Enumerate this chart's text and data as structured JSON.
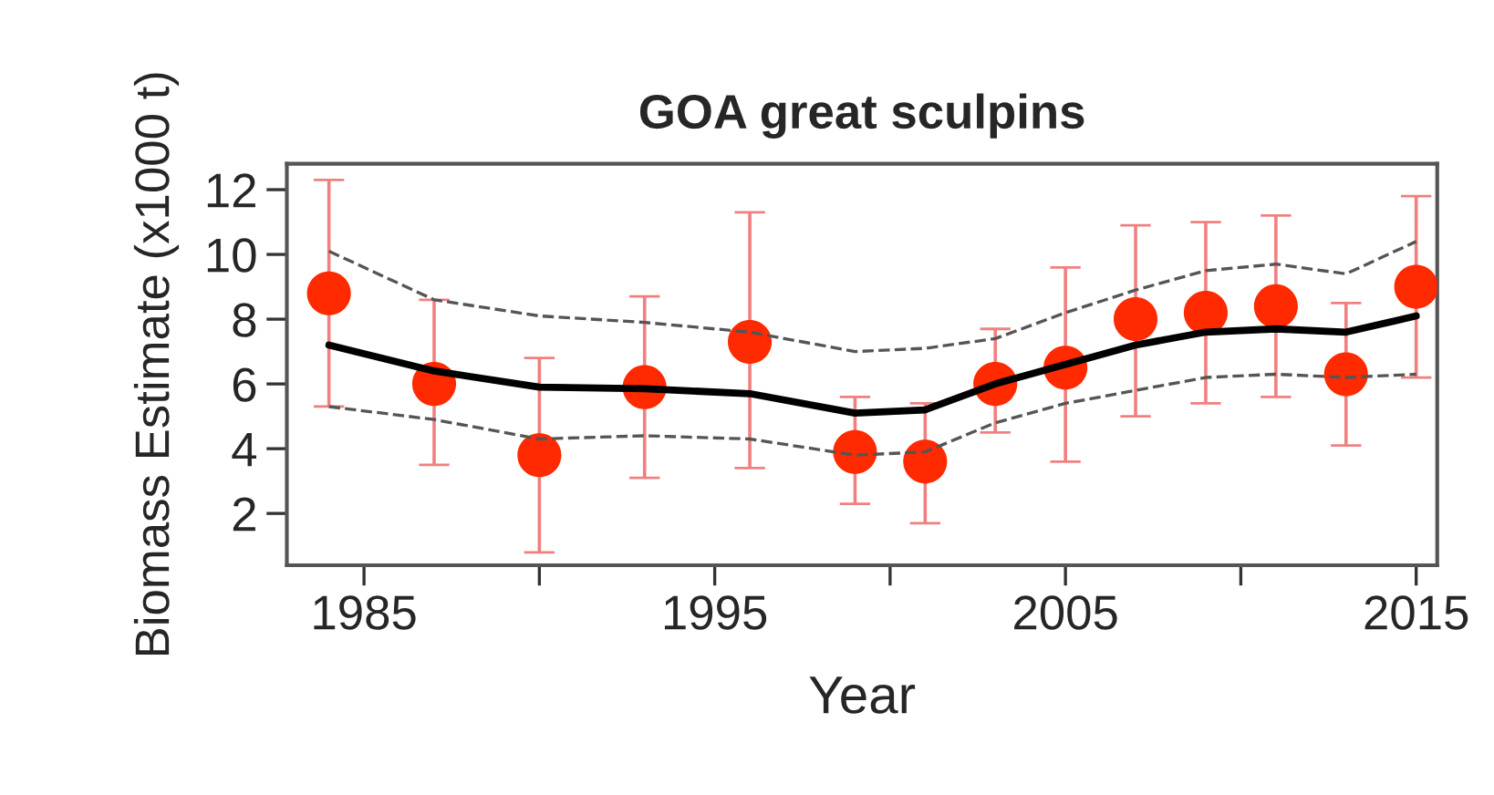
{
  "chart_data": {
    "type": "scatter",
    "title": "GOA great sculpins",
    "xlabel": "Year",
    "ylabel": "Biomass Estimate (x1000 t)",
    "x": [
      1984,
      1987,
      1990,
      1993,
      1996,
      1999,
      2001,
      2003,
      2005,
      2007,
      2009,
      2011,
      2013,
      2015
    ],
    "series": [
      {
        "color": "#ff2a00",
        "marker": "circle",
        "values": [
          8.8,
          6.0,
          3.8,
          5.9,
          7.3,
          3.9,
          3.6,
          6.0,
          6.5,
          8.0,
          8.2,
          8.4,
          6.3,
          9.0
        ],
        "errors": [
          [
            5.3,
            12.3
          ],
          [
            3.5,
            8.6
          ],
          [
            0.8,
            6.8
          ],
          [
            3.1,
            8.7
          ],
          [
            3.4,
            11.3
          ],
          [
            2.3,
            5.6
          ],
          [
            1.7,
            5.4
          ],
          [
            4.5,
            7.7
          ],
          [
            3.6,
            9.6
          ],
          [
            5.0,
            10.9
          ],
          [
            5.4,
            11.0
          ],
          [
            5.6,
            11.2
          ],
          [
            4.1,
            8.5
          ],
          [
            6.2,
            11.8
          ]
        ]
      },
      {
        "type": "line",
        "color": "#000000",
        "line_style": "solid",
        "values": [
          7.2,
          6.4,
          5.9,
          5.85,
          5.7,
          5.1,
          5.2,
          6.0,
          6.6,
          7.2,
          7.6,
          7.7,
          7.6,
          8.1
        ]
      },
      {
        "type": "line",
        "color": "#555555",
        "line_style": "dashed",
        "values": [
          5.3,
          4.9,
          4.3,
          4.4,
          4.3,
          3.8,
          3.9,
          4.8,
          5.4,
          5.8,
          6.2,
          6.3,
          6.2,
          6.3
        ]
      },
      {
        "type": "line",
        "color": "#555555",
        "line_style": "dashed",
        "values": [
          10.1,
          8.6,
          8.1,
          7.9,
          7.6,
          7.0,
          7.1,
          7.4,
          8.2,
          8.9,
          9.5,
          9.7,
          9.4,
          10.4
        ]
      }
    ],
    "xlim": [
      1982.8,
      2015.6
    ],
    "xticks": [
      1985,
      {
        "value": 1990,
        "label": null
      },
      1995,
      {
        "value": 2000,
        "label": null
      },
      2005,
      {
        "value": 2010,
        "label": null
      },
      2015
    ],
    "ylim": [
      0.4,
      12.8
    ],
    "yticks": [
      2,
      4,
      6,
      8,
      10,
      12
    ],
    "grid": false,
    "legend": false
  }
}
